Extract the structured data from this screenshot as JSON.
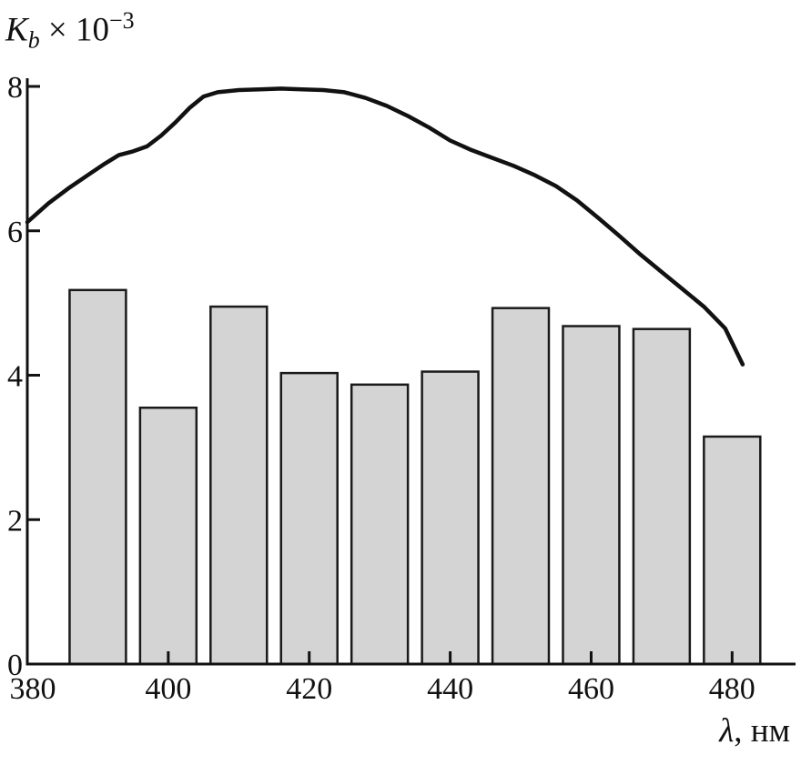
{
  "figure": {
    "background": "#ffffff",
    "ink_color": "#111111"
  },
  "labels": {
    "y_base": "K",
    "y_sub": "b",
    "y_mult": " × 10",
    "y_exp": "−3",
    "x_symbol": "λ",
    "x_rest": ", нм"
  },
  "chart_data": {
    "type": "bar",
    "subtype": "bar-with-line-overlay",
    "xlabel": "λ, нм",
    "ylabel": "K_b × 10^−3",
    "xlim": [
      380,
      489
    ],
    "ylim": [
      0,
      8
    ],
    "x_ticks": [
      380,
      400,
      420,
      440,
      460,
      480
    ],
    "y_ticks": [
      0,
      2,
      4,
      6,
      8
    ],
    "grid": false,
    "legend": "none",
    "bar_series": {
      "name": "K_b bars",
      "categories": [
        390,
        400,
        410,
        420,
        430,
        440,
        450,
        460,
        470,
        480
      ],
      "values": [
        5.18,
        3.55,
        4.95,
        4.03,
        3.87,
        4.05,
        4.93,
        4.68,
        4.64,
        3.15
      ],
      "bar_width_nm": 8,
      "fill": "#d4d4d4",
      "stroke": "#1a1a1a"
    },
    "line_series": {
      "name": "K_b curve",
      "color": "#111111",
      "width": 4.5,
      "points": [
        [
          380,
          6.12
        ],
        [
          383,
          6.38
        ],
        [
          386,
          6.6
        ],
        [
          389,
          6.8
        ],
        [
          391,
          6.93
        ],
        [
          393,
          7.05
        ],
        [
          395,
          7.1
        ],
        [
          397,
          7.17
        ],
        [
          399,
          7.32
        ],
        [
          401,
          7.5
        ],
        [
          403,
          7.7
        ],
        [
          405,
          7.86
        ],
        [
          407,
          7.92
        ],
        [
          410,
          7.95
        ],
        [
          413,
          7.96
        ],
        [
          416,
          7.97
        ],
        [
          419,
          7.96
        ],
        [
          422,
          7.95
        ],
        [
          425,
          7.92
        ],
        [
          428,
          7.84
        ],
        [
          431,
          7.73
        ],
        [
          434,
          7.59
        ],
        [
          437,
          7.43
        ],
        [
          440,
          7.25
        ],
        [
          443,
          7.12
        ],
        [
          446,
          7.01
        ],
        [
          449,
          6.9
        ],
        [
          452,
          6.77
        ],
        [
          455,
          6.62
        ],
        [
          458,
          6.42
        ],
        [
          461,
          6.18
        ],
        [
          464,
          5.93
        ],
        [
          467,
          5.67
        ],
        [
          470,
          5.43
        ],
        [
          473,
          5.19
        ],
        [
          476,
          4.95
        ],
        [
          479,
          4.65
        ],
        [
          481.5,
          4.15
        ]
      ]
    }
  }
}
